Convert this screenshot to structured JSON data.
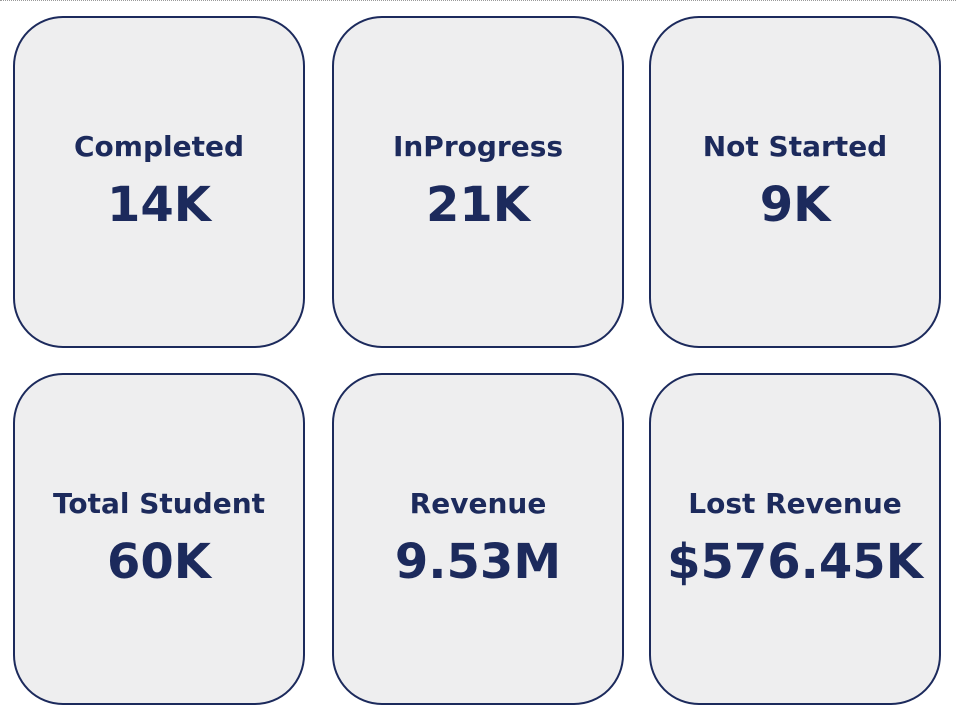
{
  "cards": [
    {
      "label": "Completed",
      "value": "14K"
    },
    {
      "label": "InProgress",
      "value": "21K"
    },
    {
      "label": "Not Started",
      "value": "9K"
    },
    {
      "label": "Total Student",
      "value": "60K"
    },
    {
      "label": "Revenue",
      "value": "9.53M"
    },
    {
      "label": "Lost Revenue",
      "value": "$576.45K"
    }
  ],
  "colors": {
    "card_background": "#eeeeef",
    "card_border": "#1c2a5c",
    "text": "#1c2a5c"
  }
}
